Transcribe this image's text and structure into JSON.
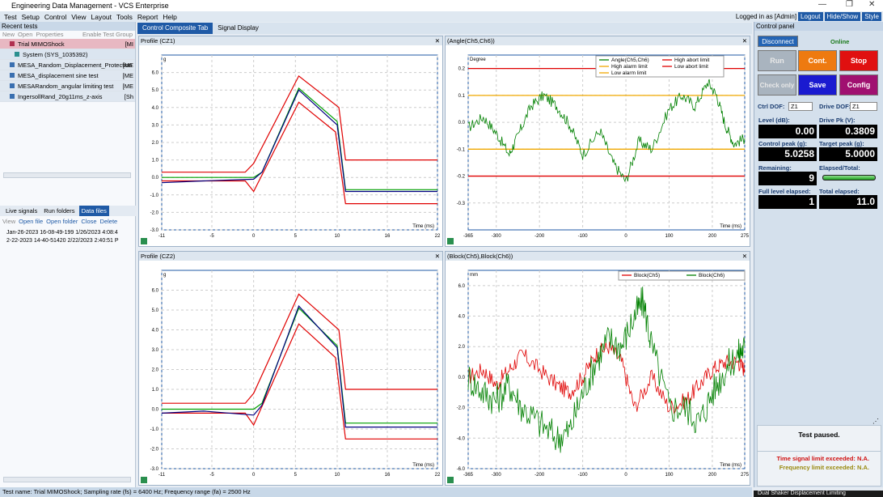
{
  "window": {
    "title": "Engineering Data Management - VCS Enterprise"
  },
  "menu": [
    "Test",
    "Setup",
    "Control",
    "View",
    "Layout",
    "Tools",
    "Report",
    "Help"
  ],
  "user": {
    "logged_in": "Logged in as [Admin]",
    "logout": "Logout",
    "hide_show": "Hide/Show",
    "style": "Style"
  },
  "recent": {
    "header": "Recent tests",
    "toolbar": [
      "New",
      "Open",
      "Properties",
      "Enable Test Group"
    ],
    "items": [
      {
        "label": "Trial MIMOShock",
        "tag": "[MI"
      },
      {
        "label": "System (SYS_1035392)",
        "tag": ""
      },
      {
        "label": "MESA_Random_Displacement_Protection",
        "tag": "[ME"
      },
      {
        "label": "MESA_displacement sine test",
        "tag": "[ME"
      },
      {
        "label": "MESARandom_angular limiting test",
        "tag": "[ME"
      },
      {
        "label": "IngersollRand_20g11ms_z-axis",
        "tag": "[Sh"
      }
    ]
  },
  "lower": {
    "tabs": [
      "Live signals",
      "Run folders",
      "Data files"
    ],
    "toolbar": [
      "View",
      "Open file",
      "Open folder",
      "Close",
      "Delete"
    ],
    "files": [
      "Jan-26-2023 16-08-49-199  1/26/2023 4:08:4",
      "2-22-2023 14-40-51420  2/22/2023 2:40:51 P"
    ]
  },
  "status": "Test name: Trial MIMOShock; Sampling rate (fs) = 6400 Hz; Frequency range (fa) = 2500 Hz",
  "main_tabs": [
    "Control Composite Tab",
    "Signal Display"
  ],
  "panels": {
    "p1": {
      "title": "Profile (CZ1)",
      "unit": "g",
      "xlabel": "Time (ms)"
    },
    "p2": {
      "title": "(Angle(Ch5,Ch6))",
      "unit": "Degree",
      "xlabel": "Time (ms)",
      "legend": [
        "Angle(Ch5,Ch6)",
        "High alarm limit",
        "Low alarm limit",
        "High abort limit",
        "Low abort limit"
      ]
    },
    "p3": {
      "title": "Profile (CZ2)",
      "unit": "g",
      "xlabel": "Time (ms)"
    },
    "p4": {
      "title": "(Block(Ch5),Block(Ch6))",
      "unit": "mm",
      "xlabel": "Time (ms)",
      "legend": [
        "Block(Ch5)",
        "Block(Ch6)"
      ]
    }
  },
  "chart_data": [
    {
      "type": "line",
      "title": "Profile (CZ1)",
      "xlabel": "Time (ms)",
      "ylabel": "g",
      "xlim": [
        -11,
        22
      ],
      "ylim": [
        -3,
        7
      ],
      "xticks": [
        -11,
        -5,
        0,
        5,
        10,
        16,
        22
      ],
      "yticks": [
        -3,
        -2,
        -1,
        0,
        1,
        2,
        3,
        4,
        5,
        6
      ],
      "series": [
        {
          "name": "high abort",
          "color": "#e00000",
          "x": [
            -11,
            -1,
            0,
            5.4,
            10.2,
            11,
            22
          ],
          "y": [
            0.3,
            0.3,
            0.8,
            5.8,
            4,
            1,
            1
          ]
        },
        {
          "name": "low abort",
          "color": "#e00000",
          "x": [
            -11,
            -1,
            0,
            5.4,
            9.8,
            11,
            22
          ],
          "y": [
            -0.2,
            -0.2,
            -0.8,
            4.3,
            2.6,
            -1.5,
            -1.5
          ]
        },
        {
          "name": "target",
          "color": "#00a000",
          "x": [
            -11,
            0,
            1,
            5.4,
            10,
            11,
            22
          ],
          "y": [
            0,
            0,
            0.3,
            5.1,
            3.2,
            -0.7,
            -0.7
          ]
        },
        {
          "name": "control",
          "color": "#000080",
          "x": [
            -11,
            -6,
            0,
            1,
            5.4,
            10,
            11,
            22
          ],
          "y": [
            -0.3,
            -0.2,
            -0.1,
            0.3,
            5,
            3,
            -0.8,
            -0.8
          ]
        }
      ]
    },
    {
      "type": "line",
      "title": "(Angle(Ch5,Ch6))",
      "xlabel": "Time (ms)",
      "ylabel": "Degree",
      "xlim": [
        -365,
        275
      ],
      "ylim": [
        -0.4,
        0.25
      ],
      "xticks": [
        -365,
        -300,
        -200,
        -100,
        0,
        100,
        200,
        275
      ],
      "yticks": [
        -0.3,
        -0.2,
        -0.1,
        0,
        0.1,
        0.2
      ],
      "limits": {
        "high_abort": 0.2,
        "low_abort": -0.2,
        "high_alarm": 0.1,
        "low_alarm": -0.1
      },
      "series": [
        {
          "name": "Angle(Ch5,Ch6)",
          "color": "#008000",
          "x": [
            -365,
            -330,
            -300,
            -270,
            -250,
            -220,
            -190,
            -160,
            -130,
            -100,
            -60,
            -30,
            0,
            30,
            60,
            100,
            130,
            160,
            190,
            210,
            230,
            250,
            275
          ],
          "y": [
            -0.02,
            0.02,
            -0.04,
            -0.12,
            -0.05,
            0.06,
            0.1,
            0.06,
            -0.01,
            -0.12,
            -0.03,
            -0.15,
            -0.22,
            -0.07,
            -0.1,
            0.05,
            0.1,
            0.06,
            0.15,
            0.1,
            -0.01,
            -0.08,
            -0.06
          ]
        }
      ]
    },
    {
      "type": "line",
      "title": "Profile (CZ2)",
      "xlabel": "Time (ms)",
      "ylabel": "g",
      "xlim": [
        -11,
        22
      ],
      "ylim": [
        -3,
        7
      ],
      "xticks": [
        -11,
        -5,
        0,
        5,
        10,
        16,
        22
      ],
      "yticks": [
        -3,
        -2,
        -1,
        0,
        1,
        2,
        3,
        4,
        5,
        6
      ],
      "series": [
        {
          "name": "high abort",
          "color": "#e00000",
          "x": [
            -11,
            -1,
            0,
            5.4,
            10.2,
            11,
            22
          ],
          "y": [
            0.3,
            0.3,
            0.8,
            5.8,
            4,
            1,
            1
          ]
        },
        {
          "name": "low abort",
          "color": "#e00000",
          "x": [
            -11,
            -1,
            0,
            5.4,
            9.8,
            11,
            22
          ],
          "y": [
            -0.2,
            -0.2,
            -0.8,
            4.3,
            2.6,
            -1.5,
            -1.5
          ]
        },
        {
          "name": "target",
          "color": "#00a000",
          "x": [
            -11,
            0,
            1,
            5.4,
            10,
            11,
            22
          ],
          "y": [
            0,
            0,
            0.3,
            5.1,
            3.2,
            -0.7,
            -0.7
          ]
        },
        {
          "name": "control",
          "color": "#000080",
          "x": [
            -11,
            -6,
            0,
            1,
            5.4,
            10,
            11,
            22
          ],
          "y": [
            -0.2,
            -0.1,
            -0.3,
            0.2,
            5.2,
            3.1,
            -0.9,
            -0.9
          ]
        }
      ]
    },
    {
      "type": "line",
      "title": "(Block(Ch5),Block(Ch6))",
      "xlabel": "Time (ms)",
      "ylabel": "mm",
      "xlim": [
        -365,
        275
      ],
      "ylim": [
        -6,
        7
      ],
      "xticks": [
        -365,
        -300,
        -200,
        -100,
        0,
        100,
        200,
        275
      ],
      "yticks": [
        -6,
        -4,
        -2,
        0,
        2,
        4,
        6
      ],
      "series": [
        {
          "name": "Block(Ch5)",
          "color": "#e00000",
          "x": [
            -365,
            -330,
            -300,
            -270,
            -240,
            -200,
            -160,
            -130,
            -100,
            -70,
            -40,
            -10,
            20,
            60,
            100,
            140,
            170,
            200,
            230,
            260,
            275
          ],
          "y": [
            0,
            0.5,
            -0.5,
            0.5,
            1.5,
            0.5,
            -0.5,
            -1,
            0,
            1.5,
            2,
            1,
            -2,
            0,
            -2,
            -1.5,
            -0.5,
            0.5,
            1,
            1,
            0.5
          ]
        },
        {
          "name": "Block(Ch6)",
          "color": "#008000",
          "x": [
            -365,
            -330,
            -300,
            -270,
            -240,
            -200,
            -160,
            -130,
            -100,
            -70,
            -40,
            -10,
            20,
            40,
            60,
            100,
            140,
            170,
            200,
            230,
            260,
            275
          ],
          "y": [
            0,
            -1,
            -1.5,
            -0.5,
            -2,
            -3,
            -4,
            -3.5,
            -1,
            1,
            2.5,
            2,
            4,
            5,
            2,
            -2,
            -2,
            -3,
            -1,
            0.5,
            1.5,
            2
          ]
        }
      ]
    }
  ],
  "control": {
    "header": "Control panel",
    "disconnect": "Disconnect",
    "online": "Online",
    "buttons": {
      "run": "Run",
      "cont": "Cont.",
      "stop": "Stop",
      "check": "Check only",
      "save": "Save",
      "config": "Config"
    },
    "ctrl_dof_label": "Ctrl DOF:",
    "ctrl_dof": "Z1",
    "drive_dof_label": "Drive DOF:",
    "drive_dof": "Z1",
    "level_label": "Level (dB):",
    "level": "0.00",
    "drivepk_label": "Drive Pk (V):",
    "drivepk": "0.3809",
    "ctrlpeak_label": "Control peak (g):",
    "ctrlpeak": "5.0258",
    "targetpeak_label": "Target peak (g):",
    "targetpeak": "5.0000",
    "remaining_label": "Remaining:",
    "remaining": "9",
    "elapsed_label": "Elapsed/Total:",
    "elapsed_fraction": 1.0,
    "fulllevel_label": "Full level elapsed:",
    "fulllevel": "1",
    "total_label": "Total elapsed:",
    "total": "11.0",
    "msg": "Test paused.",
    "time_limit": "Time signal limit exceeded: N.A.",
    "freq_limit": "Frequency limit exceeded: N.A."
  },
  "taskbar_fragment": "Dual Shaker Displacement Limiting"
}
